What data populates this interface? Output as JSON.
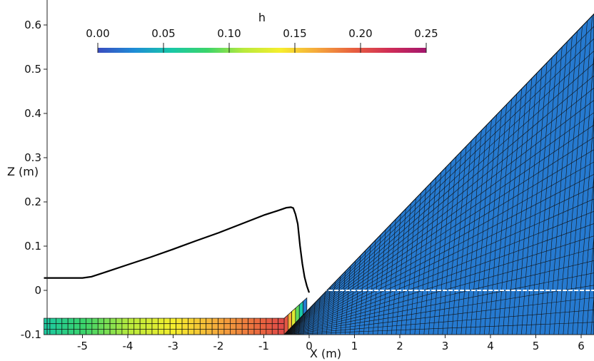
{
  "chart_data": {
    "type": "mesh-contour",
    "xlabel": "X (m)",
    "ylabel": "Z (m)",
    "xlim": [
      -5.85,
      6.3
    ],
    "ylim": [
      -0.1,
      0.64
    ],
    "x_ticks": [
      -5,
      -4,
      -3,
      -2,
      -1,
      0,
      1,
      2,
      3,
      4,
      5,
      6
    ],
    "x_tick_labels": [
      "-5",
      "-4",
      "-3",
      "-2",
      "-1",
      "0",
      "1",
      "2",
      "3",
      "4",
      "5",
      "6"
    ],
    "y_ticks": [
      -0.1,
      0,
      0.1,
      0.2,
      0.3,
      0.4,
      0.5,
      0.6
    ],
    "y_tick_labels": [
      "-0.1",
      "0",
      "0.1",
      "0.2",
      "0.3",
      "0.4",
      "0.5",
      "0.6"
    ],
    "colorbar": {
      "title": "h",
      "range": [
        0.0,
        0.25
      ],
      "ticks": [
        0.0,
        0.05,
        0.1,
        0.15,
        0.2,
        0.25
      ],
      "tick_labels": [
        "0.00",
        "0.05",
        "0.10",
        "0.15",
        "0.20",
        "0.25"
      ],
      "colormap": [
        "#3a4cc0",
        "#1e8cd6",
        "#18c7a8",
        "#3bd46a",
        "#b9ea3c",
        "#f6ee2d",
        "#f5a83c",
        "#e8603f",
        "#cf2c57",
        "#a3166d"
      ]
    },
    "flume_bed": {
      "x_start": -5.85,
      "x_end": -0.55,
      "z_bottom": -0.1,
      "z_top": -0.063,
      "h_start": 0.06,
      "h_end": 0.205
    },
    "slope": {
      "x_toe": -0.55,
      "z_toe": -0.1,
      "x_top": 6.3,
      "z_top": 0.625,
      "h": 0.02
    },
    "free_surface_profile": {
      "x": [
        -5.85,
        -5.4,
        -5.0,
        -4.8,
        -4.5,
        -4.0,
        -3.5,
        -3.0,
        -2.5,
        -2.0,
        -1.5,
        -1.0,
        -0.7,
        -0.5,
        -0.4,
        -0.35,
        -0.3,
        -0.25,
        -0.2,
        -0.15,
        -0.1,
        -0.05,
        0.0
      ],
      "z": [
        0.028,
        0.028,
        0.028,
        0.031,
        0.041,
        0.058,
        0.075,
        0.093,
        0.112,
        0.13,
        0.15,
        0.17,
        0.18,
        0.187,
        0.188,
        0.186,
        0.172,
        0.15,
        0.1,
        0.06,
        0.03,
        0.01,
        -0.005
      ]
    },
    "still_water_level_z": 0.0
  }
}
